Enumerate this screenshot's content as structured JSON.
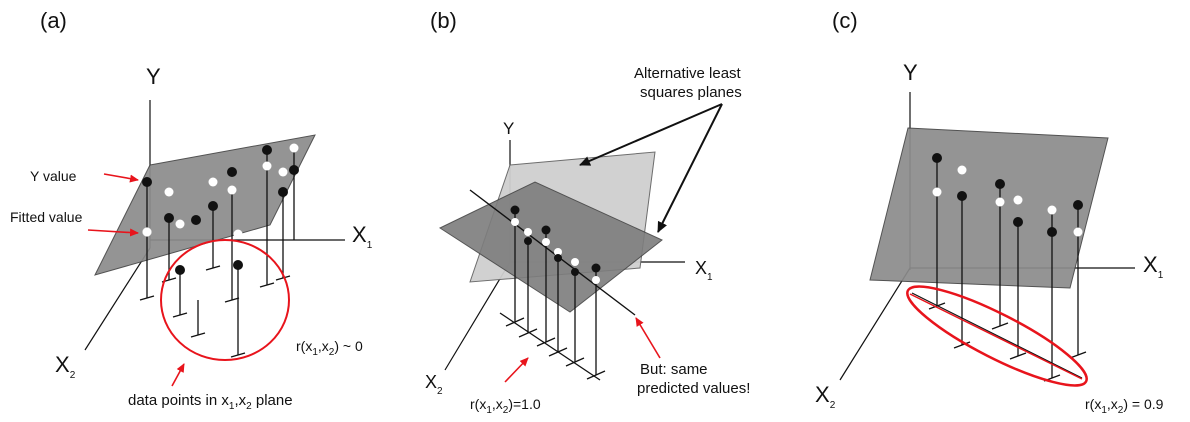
{
  "panels": [
    {
      "label": "(a)",
      "axes": {
        "y": "Y",
        "x1": "X",
        "x1_sub": "1",
        "x2": "X",
        "x2_sub": "2"
      },
      "annotations": {
        "y_value": "Y value",
        "fitted_value": "Fitted value",
        "correlation": {
          "prefix": "r(x",
          "s1": "1",
          "mid": ",x",
          "s2": "2",
          "suffix": ") ~ 0"
        },
        "data_points": {
          "prefix": "data points in x",
          "s1": "1",
          "mid": ",x",
          "s2": "2",
          "suffix": " plane"
        }
      }
    },
    {
      "label": "(b)",
      "axes": {
        "y": "Y",
        "x1": "X",
        "x1_sub": "1",
        "x2": "X",
        "x2_sub": "2"
      },
      "annotations": {
        "alt_planes_line1": "Alternative least",
        "alt_planes_line2": "squares planes",
        "same_line1": "But: same",
        "same_line2": "predicted values!",
        "correlation": {
          "prefix": "r(x",
          "s1": "1",
          "mid": ",x",
          "s2": "2",
          "suffix": ")=1.0"
        }
      }
    },
    {
      "label": "(c)",
      "axes": {
        "y": "Y",
        "x1": "X",
        "x1_sub": "1",
        "x2": "X",
        "x2_sub": "2"
      },
      "annotations": {
        "correlation": {
          "prefix": "r(x",
          "s1": "1",
          "mid": ",x",
          "s2": "2",
          "suffix": ") = 0.9"
        }
      }
    }
  ],
  "colors": {
    "annotation": "#e8141c",
    "plane": "#8c8c8c",
    "plane_light": "#cfcfcf",
    "ink": "#111111"
  }
}
